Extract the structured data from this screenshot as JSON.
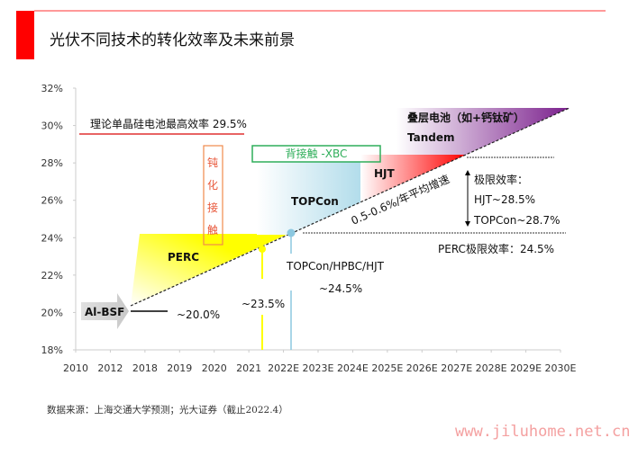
{
  "title": "光伏不同技术的转化效率及未来前景",
  "source": "数据来源：上海交通大学预测；光大证券（截止2022.4）",
  "watermark": "www.jiluhome.net.cn",
  "colors": {
    "accent": "#ff0000",
    "perc": "#ffff00",
    "topcon": "#a8d8e8",
    "hjt": "#ff0000",
    "tandem": "#7a1f8c",
    "xbc": "#2fae5a",
    "passivation": "#f08a4b"
  },
  "chart_data": {
    "type": "area",
    "title": "光伏不同技术的转化效率及未来前景",
    "x_ticks": [
      "2010",
      "2012",
      "2018",
      "2019",
      "2020",
      "2021",
      "2022E",
      "2023E",
      "2024E",
      "2025E",
      "2026E",
      "2027E",
      "2028E",
      "2029E",
      "2030E"
    ],
    "y_ticks": [
      "18%",
      "20%",
      "22%",
      "24%",
      "26%",
      "28%",
      "30%",
      "32%"
    ],
    "ylim": [
      18,
      32
    ],
    "grid": false,
    "series": [
      {
        "name": "Al-BSF",
        "value": "~20.0%"
      },
      {
        "name": "PERC",
        "value": "~23.5%"
      },
      {
        "name": "TOPCon",
        "value": ""
      },
      {
        "name": "HJT",
        "value": ""
      },
      {
        "name": "Tandem",
        "value": ""
      }
    ],
    "annotations": {
      "theory_max": "理论单晶硅电池最高效率 29.5%",
      "passivation": [
        "钝",
        "化",
        "接",
        "触"
      ],
      "xbc": "背接触 -XBC",
      "tandem_cn": "叠层电池（如+钙钛矿）",
      "tandem_en": "Tandem",
      "hjt": "HJT",
      "topcon": "TOPCon",
      "perc": "PERC",
      "al_bsf": "Al-BSF",
      "al_bsf_value": "~20.0%",
      "perc_value": "~23.5%",
      "growth": "0.5-0.6%/年平均增速",
      "limit_title": "极限效率：",
      "limit_hjt": "HJT~28.5%",
      "limit_topcon": "TOPCon~28.7%",
      "perc_limit": "PERC极限效率：24.5%",
      "next_gen": "TOPCon/HPBC/HJT",
      "next_gen_value": "~24.5%"
    }
  }
}
